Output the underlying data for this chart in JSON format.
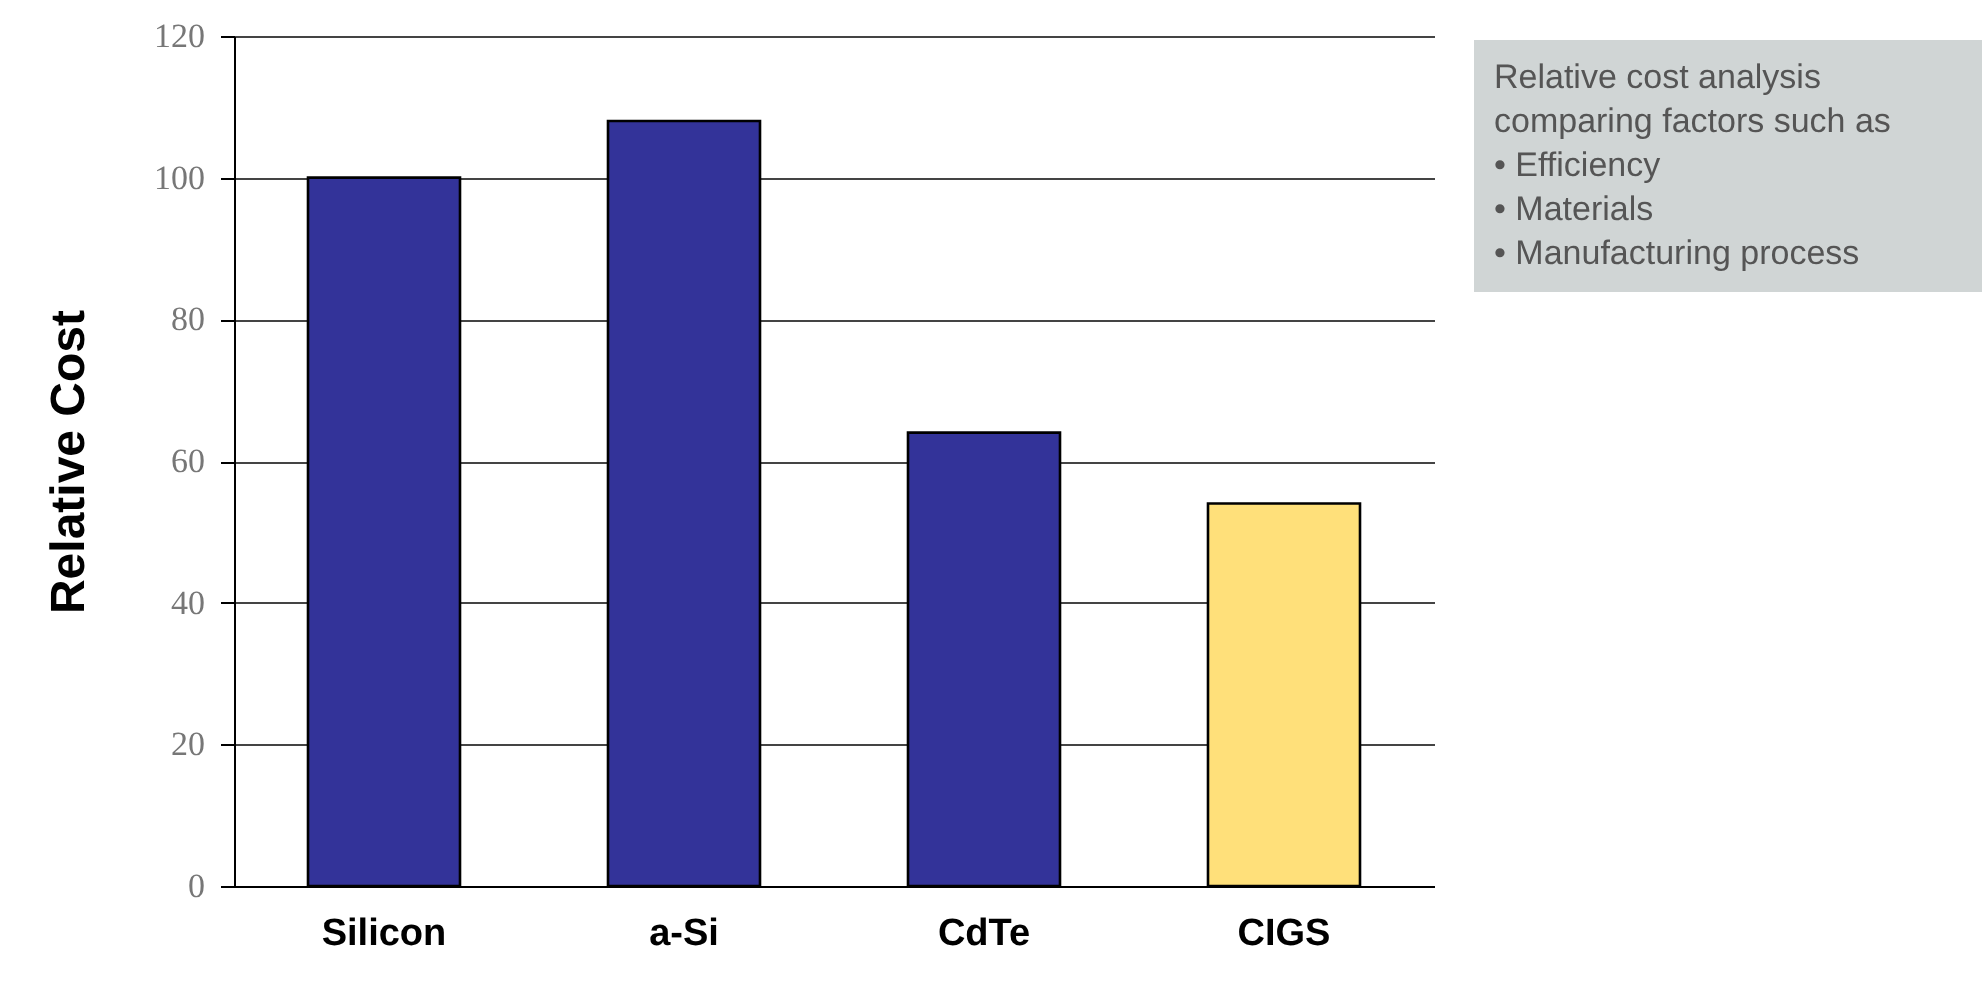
{
  "chart_data": {
    "type": "bar",
    "ylabel": "Relative Cost",
    "categories": [
      "Silicon",
      "a-Si",
      "CdTe",
      "CIGS"
    ],
    "values": [
      100,
      108,
      64,
      54
    ],
    "colors": [
      "#333399",
      "#333399",
      "#333399",
      "#ffe07a"
    ],
    "ylim": [
      0,
      120
    ],
    "yticks": [
      0,
      20,
      40,
      60,
      80,
      100,
      120
    ],
    "grid": "y",
    "annotations": [
      "Relative cost analysis",
      "comparing factors such as",
      "• Efficiency",
      "• Materials",
      "• Manufacturing process"
    ]
  }
}
